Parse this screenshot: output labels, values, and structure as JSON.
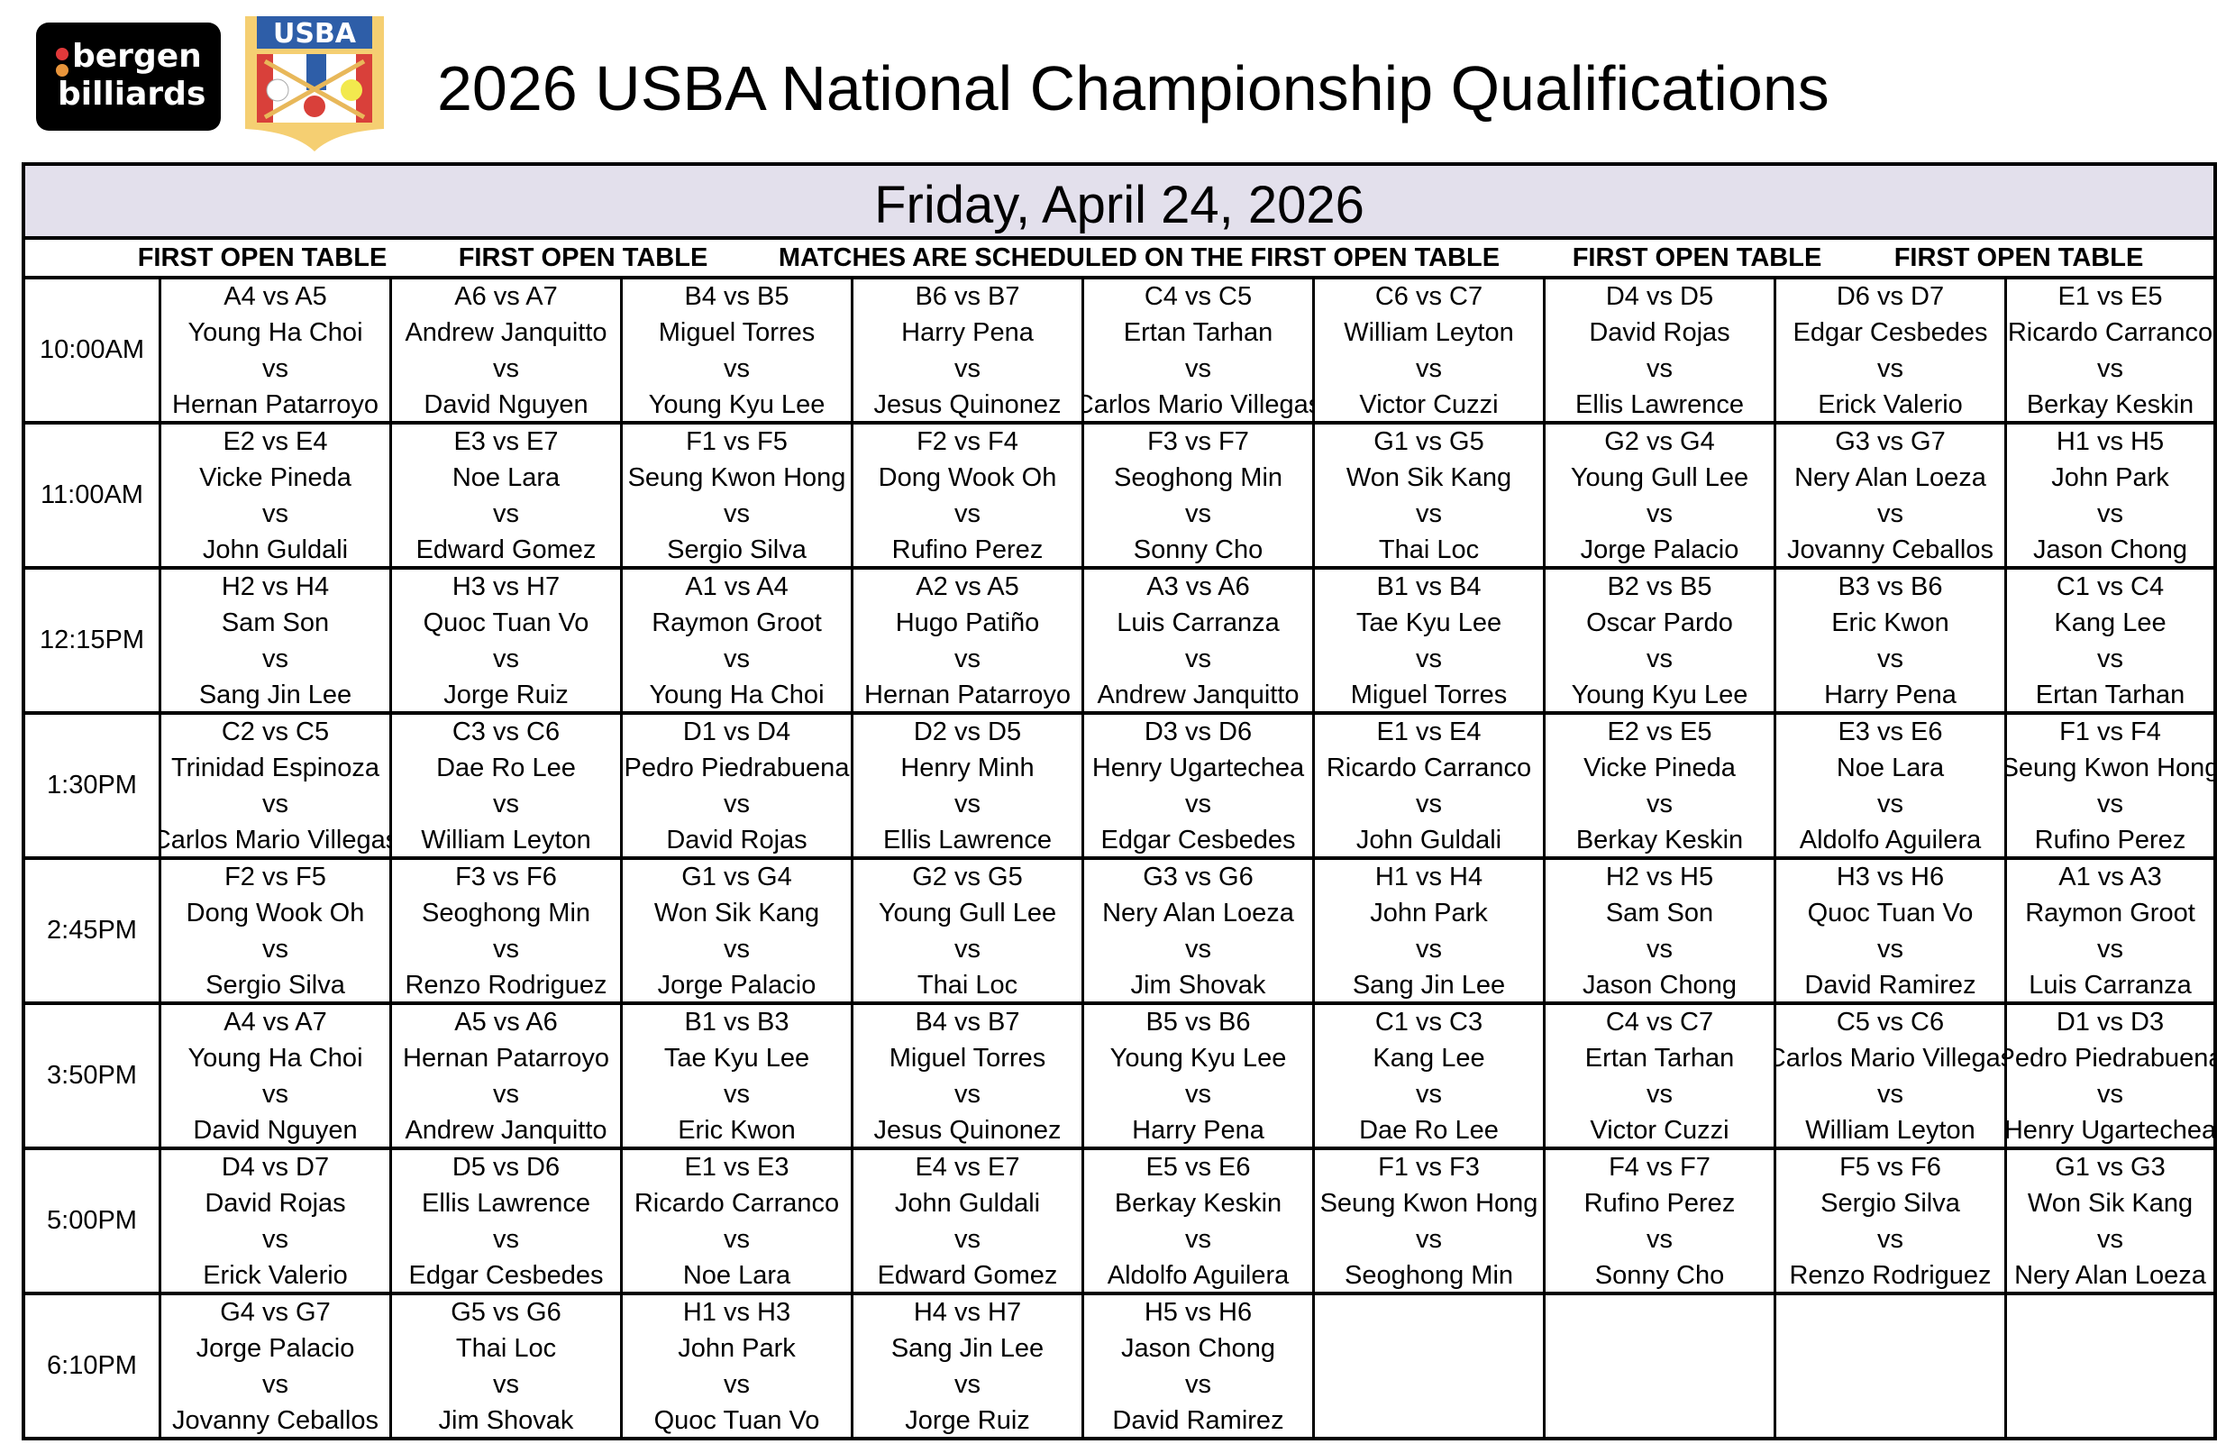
{
  "header": {
    "title": "2026 USBA National Championship Qualifications",
    "logos": {
      "bergen_line1": "bergen",
      "bergen_line2": "billiards",
      "usba": "USBA"
    }
  },
  "schedule": {
    "date": "Friday, April 24, 2026",
    "column_notes": [
      "FIRST OPEN TABLE",
      "FIRST OPEN TABLE",
      "MATCHES ARE SCHEDULED ON THE FIRST OPEN TABLE",
      "FIRST OPEN TABLE",
      "FIRST OPEN TABLE"
    ],
    "rows": [
      {
        "time": "10:00AM",
        "matches": [
          {
            "code": "A4 vs A5",
            "p1": "Young Ha Choi",
            "vs": "vs",
            "p2": "Hernan Patarroyo"
          },
          {
            "code": "A6 vs A7",
            "p1": "Andrew Janquitto",
            "vs": "vs",
            "p2": "David Nguyen"
          },
          {
            "code": "B4 vs B5",
            "p1": "Miguel Torres",
            "vs": "vs",
            "p2": "Young Kyu Lee"
          },
          {
            "code": "B6 vs B7",
            "p1": "Harry Pena",
            "vs": "vs",
            "p2": "Jesus Quinonez"
          },
          {
            "code": "C4 vs C5",
            "p1": "Ertan Tarhan",
            "vs": "vs",
            "p2": "Carlos Mario Villegas"
          },
          {
            "code": "C6 vs C7",
            "p1": "William Leyton",
            "vs": "vs",
            "p2": "Victor Cuzzi"
          },
          {
            "code": "D4 vs D5",
            "p1": "David Rojas",
            "vs": "vs",
            "p2": "Ellis Lawrence"
          },
          {
            "code": "D6 vs D7",
            "p1": "Edgar Cesbedes",
            "vs": "vs",
            "p2": "Erick Valerio"
          },
          {
            "code": "E1 vs E5",
            "p1": "Ricardo Carranco",
            "vs": "vs",
            "p2": "Berkay Keskin"
          }
        ]
      },
      {
        "time": "11:00AM",
        "matches": [
          {
            "code": "E2 vs E4",
            "p1": "Vicke Pineda",
            "vs": "vs",
            "p2": "John Guldali"
          },
          {
            "code": "E3 vs E7",
            "p1": "Noe Lara",
            "vs": "vs",
            "p2": "Edward Gomez"
          },
          {
            "code": "F1 vs F5",
            "p1": "Seung Kwon Hong",
            "vs": "vs",
            "p2": "Sergio Silva"
          },
          {
            "code": "F2 vs F4",
            "p1": "Dong Wook Oh",
            "vs": "vs",
            "p2": "Rufino Perez"
          },
          {
            "code": "F3 vs F7",
            "p1": "Seoghong Min",
            "vs": "vs",
            "p2": "Sonny Cho"
          },
          {
            "code": "G1 vs G5",
            "p1": "Won Sik Kang",
            "vs": "vs",
            "p2": "Thai Loc"
          },
          {
            "code": "G2 vs G4",
            "p1": "Young Gull Lee",
            "vs": "vs",
            "p2": "Jorge Palacio"
          },
          {
            "code": "G3 vs G7",
            "p1": "Nery Alan Loeza",
            "vs": "vs",
            "p2": "Jovanny Ceballos"
          },
          {
            "code": "H1 vs H5",
            "p1": "John Park",
            "vs": "vs",
            "p2": "Jason Chong"
          }
        ]
      },
      {
        "time": "12:15PM",
        "matches": [
          {
            "code": "H2 vs H4",
            "p1": "Sam Son",
            "vs": "vs",
            "p2": "Sang Jin Lee"
          },
          {
            "code": "H3 vs H7",
            "p1": "Quoc Tuan Vo",
            "vs": "vs",
            "p2": "Jorge Ruiz"
          },
          {
            "code": "A1 vs A4",
            "p1": "Raymon Groot",
            "vs": "vs",
            "p2": "Young Ha Choi"
          },
          {
            "code": "A2 vs A5",
            "p1": "Hugo Patiño",
            "vs": "vs",
            "p2": "Hernan Patarroyo"
          },
          {
            "code": "A3 vs A6",
            "p1": "Luis Carranza",
            "vs": "vs",
            "p2": "Andrew Janquitto"
          },
          {
            "code": "B1 vs B4",
            "p1": "Tae Kyu Lee",
            "vs": "vs",
            "p2": "Miguel Torres"
          },
          {
            "code": "B2 vs B5",
            "p1": "Oscar Pardo",
            "vs": "vs",
            "p2": "Young Kyu Lee"
          },
          {
            "code": "B3 vs B6",
            "p1": "Eric Kwon",
            "vs": "vs",
            "p2": "Harry Pena"
          },
          {
            "code": "C1 vs C4",
            "p1": "Kang Lee",
            "vs": "vs",
            "p2": "Ertan Tarhan"
          }
        ]
      },
      {
        "time": "1:30PM",
        "matches": [
          {
            "code": "C2 vs C5",
            "p1": "Trinidad Espinoza",
            "vs": "vs",
            "p2": "Carlos Mario Villegas"
          },
          {
            "code": "C3 vs C6",
            "p1": "Dae Ro Lee",
            "vs": "vs",
            "p2": "William Leyton"
          },
          {
            "code": "D1 vs D4",
            "p1": "Pedro Piedrabuena",
            "vs": "vs",
            "p2": "David Rojas"
          },
          {
            "code": "D2 vs D5",
            "p1": "Henry Minh",
            "vs": "vs",
            "p2": "Ellis Lawrence"
          },
          {
            "code": "D3 vs D6",
            "p1": "Henry Ugartechea",
            "vs": "vs",
            "p2": "Edgar Cesbedes"
          },
          {
            "code": "E1 vs E4",
            "p1": "Ricardo Carranco",
            "vs": "vs",
            "p2": "John Guldali"
          },
          {
            "code": "E2 vs E5",
            "p1": "Vicke Pineda",
            "vs": "vs",
            "p2": "Berkay Keskin"
          },
          {
            "code": "E3 vs E6",
            "p1": "Noe Lara",
            "vs": "vs",
            "p2": "Aldolfo Aguilera"
          },
          {
            "code": "F1 vs F4",
            "p1": "Seung Kwon Hong",
            "vs": "vs",
            "p2": "Rufino Perez"
          }
        ]
      },
      {
        "time": "2:45PM",
        "matches": [
          {
            "code": "F2 vs F5",
            "p1": "Dong Wook Oh",
            "vs": "vs",
            "p2": "Sergio Silva"
          },
          {
            "code": "F3 vs F6",
            "p1": "Seoghong Min",
            "vs": "vs",
            "p2": "Renzo Rodriguez"
          },
          {
            "code": "G1 vs G4",
            "p1": "Won Sik Kang",
            "vs": "vs",
            "p2": "Jorge Palacio"
          },
          {
            "code": "G2 vs G5",
            "p1": "Young Gull Lee",
            "vs": "vs",
            "p2": "Thai Loc"
          },
          {
            "code": "G3 vs G6",
            "p1": "Nery Alan Loeza",
            "vs": "vs",
            "p2": "Jim Shovak"
          },
          {
            "code": "H1 vs H4",
            "p1": "John Park",
            "vs": "vs",
            "p2": "Sang Jin Lee"
          },
          {
            "code": "H2 vs H5",
            "p1": "Sam Son",
            "vs": "vs",
            "p2": "Jason Chong"
          },
          {
            "code": "H3 vs H6",
            "p1": "Quoc Tuan Vo",
            "vs": "vs",
            "p2": "David Ramirez"
          },
          {
            "code": "A1 vs A3",
            "p1": "Raymon Groot",
            "vs": "vs",
            "p2": "Luis Carranza"
          }
        ]
      },
      {
        "time": "3:50PM",
        "matches": [
          {
            "code": "A4 vs A7",
            "p1": "Young Ha Choi",
            "vs": "vs",
            "p2": "David Nguyen"
          },
          {
            "code": "A5 vs A6",
            "p1": "Hernan Patarroyo",
            "vs": "vs",
            "p2": "Andrew Janquitto"
          },
          {
            "code": "B1 vs B3",
            "p1": "Tae Kyu Lee",
            "vs": "vs",
            "p2": "Eric Kwon"
          },
          {
            "code": "B4 vs B7",
            "p1": "Miguel Torres",
            "vs": "vs",
            "p2": "Jesus Quinonez"
          },
          {
            "code": "B5 vs B6",
            "p1": "Young Kyu Lee",
            "vs": "vs",
            "p2": "Harry Pena"
          },
          {
            "code": "C1 vs C3",
            "p1": "Kang Lee",
            "vs": "vs",
            "p2": "Dae Ro Lee"
          },
          {
            "code": "C4 vs C7",
            "p1": "Ertan Tarhan",
            "vs": "vs",
            "p2": "Victor Cuzzi"
          },
          {
            "code": "C5 vs C6",
            "p1": "Carlos Mario Villegas",
            "vs": "vs",
            "p2": "William Leyton"
          },
          {
            "code": "D1 vs D3",
            "p1": "Pedro Piedrabuena",
            "vs": "vs",
            "p2": "Henry Ugartechea"
          }
        ]
      },
      {
        "time": "5:00PM",
        "matches": [
          {
            "code": "D4 vs D7",
            "p1": "David Rojas",
            "vs": "vs",
            "p2": "Erick Valerio"
          },
          {
            "code": "D5 vs D6",
            "p1": "Ellis Lawrence",
            "vs": "vs",
            "p2": "Edgar Cesbedes"
          },
          {
            "code": "E1 vs E3",
            "p1": "Ricardo Carranco",
            "vs": "vs",
            "p2": "Noe Lara"
          },
          {
            "code": "E4 vs E7",
            "p1": "John Guldali",
            "vs": "vs",
            "p2": "Edward Gomez"
          },
          {
            "code": "E5 vs E6",
            "p1": "Berkay Keskin",
            "vs": "vs",
            "p2": "Aldolfo Aguilera"
          },
          {
            "code": "F1 vs F3",
            "p1": "Seung Kwon Hong",
            "vs": "vs",
            "p2": "Seoghong Min"
          },
          {
            "code": "F4 vs F7",
            "p1": "Rufino Perez",
            "vs": "vs",
            "p2": "Sonny Cho"
          },
          {
            "code": "F5 vs F6",
            "p1": "Sergio Silva",
            "vs": "vs",
            "p2": "Renzo Rodriguez"
          },
          {
            "code": "G1 vs G3",
            "p1": "Won Sik Kang",
            "vs": "vs",
            "p2": "Nery Alan Loeza"
          }
        ]
      },
      {
        "time": "6:10PM",
        "matches": [
          {
            "code": "G4 vs G7",
            "p1": "Jorge Palacio",
            "vs": "vs",
            "p2": "Jovanny Ceballos"
          },
          {
            "code": "G5 vs G6",
            "p1": "Thai Loc",
            "vs": "vs",
            "p2": "Jim Shovak"
          },
          {
            "code": "H1 vs H3",
            "p1": "John Park",
            "vs": "vs",
            "p2": "Quoc Tuan Vo"
          },
          {
            "code": "H4 vs H7",
            "p1": "Sang Jin Lee",
            "vs": "vs",
            "p2": "Jorge Ruiz"
          },
          {
            "code": "H5 vs H6",
            "p1": "Jason Chong",
            "vs": "vs",
            "p2": "David Ramirez"
          },
          null,
          null,
          null,
          null
        ]
      }
    ]
  },
  "colors": {
    "band": "#e3e0ec",
    "usba_blue": "#2e5ea8",
    "usba_red": "#d9403a",
    "usba_gold": "#f5cf72"
  }
}
